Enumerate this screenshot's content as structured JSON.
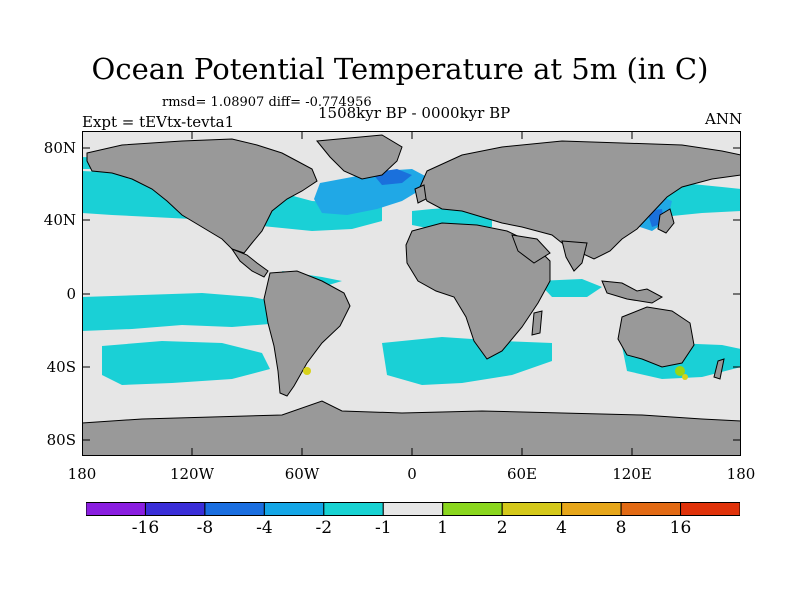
{
  "title": "Ocean Potential Temperature at 5m (in C)",
  "stats": "rmsd= 1.08907 diff= -0.774956",
  "experiment": "Expt = tEVtx-tevta1",
  "period": "1508kyr BP - 0000kyr BP",
  "season": "ANN",
  "axes": {
    "y_ticks": [
      "80N",
      "40N",
      "0",
      "40S",
      "80S"
    ],
    "x_ticks": [
      "180",
      "120W",
      "60W",
      "0",
      "60E",
      "120E",
      "180"
    ]
  },
  "colorbar": {
    "labels": [
      "-16",
      "-8",
      "-4",
      "-2",
      "-1",
      "1",
      "2",
      "4",
      "8",
      "16"
    ],
    "colors": [
      "#8a1ee0",
      "#3a2ed8",
      "#1a6ee0",
      "#14a6e6",
      "#18d2d2",
      "#e6e6e6",
      "#8ad61e",
      "#d4c81a",
      "#e6a61a",
      "#e26a14",
      "#e0320a"
    ]
  },
  "colors": {
    "land": "#999999",
    "ocean_neutral": "#e6e6e6",
    "cool_light": "#1ad0d6",
    "cool_mid": "#20a8e6",
    "cool_dark": "#1a70dc",
    "warm_green": "#9ad614",
    "warm_yellow": "#d8d21a"
  }
}
